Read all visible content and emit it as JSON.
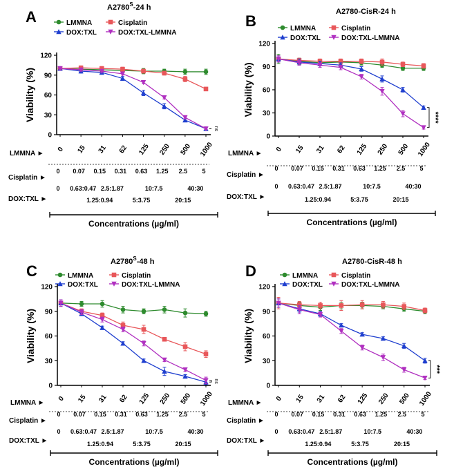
{
  "figure_axis_label": "Concentrations (µg/ml)",
  "row_labels": {
    "lmmna": "LMMNA",
    "cisplatin": "Cisplatin",
    "doxtxl": "DOX:TXL"
  },
  "lmmna_conc": [
    "0",
    "15",
    "31",
    "62",
    "125",
    "250",
    "500",
    "1000"
  ],
  "cis_conc": [
    "0",
    "0.07",
    "0.15",
    "0.31",
    "0.63",
    "1.25",
    "2.5",
    "5"
  ],
  "dox_conc_top": [
    "0",
    "0.63:0.47",
    "2.5:1.87",
    "10:7.5",
    "40:30"
  ],
  "dox_conc_bottom": [
    "1.25:0.94",
    "5:3.75",
    "20:15"
  ],
  "legend_names": [
    "LMMNA",
    "Cisplatin",
    "DOX:TXL",
    "DOX:TXL-LMMNA"
  ],
  "colors": {
    "LMMNA": "#2e8b2e",
    "Cisplatin": "#e8575a",
    "DOX:TXL": "#1f3fcf",
    "DOX:TXL-LMMNA": "#b030c0"
  },
  "chart_data": [
    {
      "panel": "A",
      "title": "A2780",
      "title_sup": "S",
      "title_suffix": "-24 h",
      "type": "line",
      "ylabel": "Viability (%)",
      "ylim": [
        0,
        120
      ],
      "yticks": [
        0,
        30,
        60,
        90,
        120
      ],
      "x": [
        "0",
        "15",
        "31",
        "62",
        "125",
        "250",
        "500",
        "1000"
      ],
      "series": [
        {
          "name": "LMMNA",
          "values": [
            100,
            99,
            98,
            97,
            96,
            96,
            95,
            95
          ],
          "err": [
            2,
            3,
            3,
            3,
            4,
            3,
            4,
            4
          ]
        },
        {
          "name": "Cisplatin",
          "values": [
            100,
            101,
            100,
            99,
            96,
            93,
            84,
            69
          ],
          "err": [
            2,
            3,
            3,
            3,
            3,
            3,
            4,
            2
          ]
        },
        {
          "name": "DOX:TXL",
          "values": [
            100,
            96,
            94,
            85,
            63,
            43,
            22,
            9
          ],
          "err": [
            2,
            3,
            2,
            3,
            4,
            4,
            2,
            2
          ]
        },
        {
          "name": "DOX:TXL-LMMNA",
          "values": [
            100,
            98,
            96,
            92,
            79,
            56,
            26,
            9
          ],
          "err": [
            2,
            2,
            2,
            2,
            2,
            2,
            2,
            1
          ]
        }
      ],
      "annotation": "ns"
    },
    {
      "panel": "B",
      "title": "A2780-CisR-24 h",
      "title_sup": "",
      "title_suffix": "",
      "type": "line",
      "ylabel": "Viability (%)",
      "ylim": [
        0,
        120
      ],
      "yticks": [
        0,
        30,
        60,
        90,
        120
      ],
      "x": [
        "0",
        "15",
        "31",
        "62",
        "125",
        "250",
        "500",
        "1000"
      ],
      "series": [
        {
          "name": "LMMNA",
          "values": [
            100,
            97,
            95,
            96,
            95,
            92,
            88,
            88
          ],
          "err": [
            6,
            4,
            3,
            3,
            3,
            3,
            3,
            3
          ]
        },
        {
          "name": "Cisplatin",
          "values": [
            100,
            98,
            97,
            97,
            97,
            96,
            93,
            91
          ],
          "err": [
            4,
            3,
            3,
            3,
            3,
            4,
            3,
            3
          ]
        },
        {
          "name": "DOX:TXL",
          "values": [
            100,
            96,
            94,
            92,
            87,
            74,
            60,
            37
          ],
          "err": [
            4,
            4,
            3,
            3,
            3,
            4,
            3,
            2
          ]
        },
        {
          "name": "DOX:TXL-LMMNA",
          "values": [
            100,
            95,
            92,
            89,
            77,
            58,
            29,
            11
          ],
          "err": [
            4,
            3,
            3,
            3,
            3,
            5,
            4,
            2
          ]
        }
      ],
      "annotation": "****"
    },
    {
      "panel": "C",
      "title": "A2780",
      "title_sup": "S",
      "title_suffix": "-48 h",
      "type": "line",
      "ylabel": "Viability (%)",
      "ylim": [
        0,
        120
      ],
      "yticks": [
        0,
        30,
        60,
        90,
        120
      ],
      "x": [
        "0",
        "15",
        "31",
        "62",
        "125",
        "250",
        "500",
        "1000"
      ],
      "series": [
        {
          "name": "LMMNA",
          "values": [
            100,
            99,
            99,
            92,
            90,
            92,
            88,
            87
          ],
          "err": [
            4,
            3,
            4,
            4,
            3,
            4,
            5,
            3
          ]
        },
        {
          "name": "Cisplatin",
          "values": [
            100,
            90,
            85,
            73,
            68,
            56,
            47,
            38
          ],
          "err": [
            4,
            3,
            3,
            4,
            5,
            2,
            5,
            4
          ]
        },
        {
          "name": "DOX:TXL",
          "values": [
            100,
            87,
            70,
            51,
            30,
            17,
            11,
            4
          ],
          "err": [
            4,
            2,
            2,
            2,
            2,
            5,
            2,
            3
          ]
        },
        {
          "name": "DOX:TXL-LMMNA",
          "values": [
            100,
            89,
            80,
            68,
            51,
            31,
            19,
            6
          ],
          "err": [
            4,
            3,
            3,
            3,
            3,
            2,
            2,
            4
          ]
        }
      ],
      "annotation": "ns"
    },
    {
      "panel": "D",
      "title": "A2780-CisR-48 h",
      "title_sup": "",
      "title_suffix": "",
      "type": "line",
      "ylabel": "Viability (%)",
      "ylim": [
        0,
        120
      ],
      "yticks": [
        0,
        30,
        60,
        90,
        120
      ],
      "x": [
        "0",
        "15",
        "31",
        "62",
        "125",
        "250",
        "500",
        "1000"
      ],
      "series": [
        {
          "name": "LMMNA",
          "values": [
            100,
            97,
            95,
            97,
            97,
            96,
            93,
            90
          ],
          "err": [
            5,
            4,
            4,
            4,
            4,
            3,
            3,
            3
          ]
        },
        {
          "name": "Cisplatin",
          "values": [
            100,
            98,
            97,
            97,
            98,
            98,
            96,
            91
          ],
          "err": [
            7,
            4,
            4,
            6,
            5,
            4,
            4,
            3
          ]
        },
        {
          "name": "DOX:TXL",
          "values": [
            100,
            93,
            87,
            73,
            62,
            57,
            48,
            30
          ],
          "err": [
            5,
            4,
            3,
            2,
            2,
            2,
            3,
            3
          ]
        },
        {
          "name": "DOX:TXL-LMMNA",
          "values": [
            100,
            92,
            86,
            66,
            46,
            34,
            19,
            9
          ],
          "err": [
            5,
            5,
            3,
            3,
            3,
            4,
            3,
            2
          ]
        }
      ],
      "annotation": "***"
    }
  ]
}
